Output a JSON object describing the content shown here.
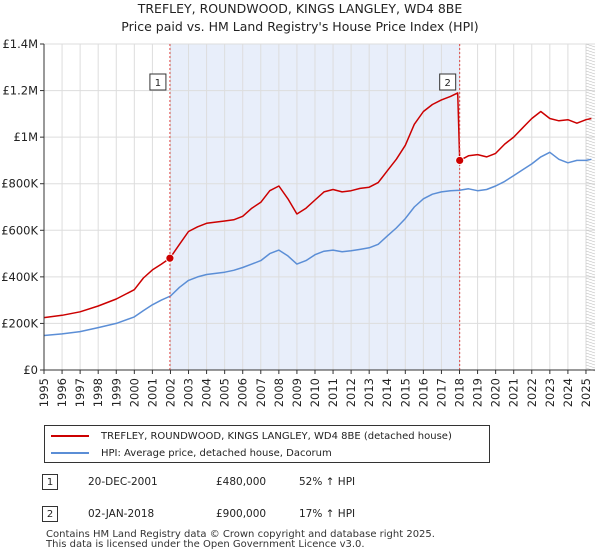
{
  "chart_data": {
    "type": "line",
    "title": "TREFLEY, ROUNDWOOD, KINGS LANGLEY, WD4 8BE",
    "subtitle": "Price paid vs. HM Land Registry's House Price Index (HPI)",
    "xlabel": "",
    "ylabel": "",
    "xlim": [
      1995,
      2025.5
    ],
    "ylim": [
      0,
      1400000
    ],
    "x_ticks": [
      "1995",
      "1996",
      "1997",
      "1998",
      "1999",
      "2000",
      "2001",
      "2002",
      "2003",
      "2004",
      "2005",
      "2006",
      "2007",
      "2008",
      "2009",
      "2010",
      "2011",
      "2012",
      "2013",
      "2014",
      "2015",
      "2016",
      "2017",
      "2018",
      "2019",
      "2020",
      "2021",
      "2022",
      "2023",
      "2024",
      "2025"
    ],
    "y_ticks": [
      {
        "value": 0,
        "label": "£0"
      },
      {
        "value": 200000,
        "label": "£200K"
      },
      {
        "value": 400000,
        "label": "£400K"
      },
      {
        "value": 600000,
        "label": "£600K"
      },
      {
        "value": 800000,
        "label": "£800K"
      },
      {
        "value": 1000000,
        "label": "£1M"
      },
      {
        "value": 1200000,
        "label": "£1.2M"
      },
      {
        "value": 1400000,
        "label": "£1.4M"
      }
    ],
    "grid": true,
    "shaded_region": [
      2001.97,
      2018.01
    ],
    "series": [
      {
        "name": "TREFLEY, ROUNDWOOD, KINGS LANGLEY, WD4 8BE (detached house)",
        "color": "#cc0000",
        "x": [
          1995,
          1996,
          1997,
          1998,
          1999,
          2000,
          2000.5,
          2001,
          2001.5,
          2001.97,
          2002.5,
          2003,
          2003.5,
          2004,
          2004.5,
          2005,
          2005.5,
          2006,
          2006.5,
          2007,
          2007.5,
          2008,
          2008.5,
          2009,
          2009.5,
          2010,
          2010.5,
          2011,
          2011.5,
          2012,
          2012.5,
          2013,
          2013.5,
          2014,
          2014.5,
          2015,
          2015.5,
          2016,
          2016.5,
          2017,
          2017.5,
          2017.9,
          2018.01,
          2018.5,
          2019,
          2019.5,
          2020,
          2020.5,
          2021,
          2021.5,
          2022,
          2022.5,
          2023,
          2023.5,
          2024,
          2024.5,
          2025,
          2025.3
        ],
        "y": [
          225000,
          235000,
          250000,
          275000,
          305000,
          345000,
          395000,
          430000,
          455000,
          480000,
          540000,
          595000,
          615000,
          630000,
          635000,
          640000,
          645000,
          660000,
          695000,
          720000,
          770000,
          790000,
          735000,
          670000,
          695000,
          730000,
          765000,
          775000,
          765000,
          770000,
          780000,
          785000,
          805000,
          855000,
          905000,
          965000,
          1055000,
          1110000,
          1140000,
          1160000,
          1175000,
          1190000,
          900000,
          920000,
          925000,
          915000,
          930000,
          970000,
          1000000,
          1040000,
          1080000,
          1110000,
          1080000,
          1070000,
          1075000,
          1060000,
          1075000,
          1080000
        ]
      },
      {
        "name": "HPI: Average price, detached house, Dacorum",
        "color": "#5b8ed6",
        "x": [
          1995,
          1996,
          1997,
          1998,
          1999,
          2000,
          2000.5,
          2001,
          2001.5,
          2002,
          2002.5,
          2003,
          2003.5,
          2004,
          2004.5,
          2005,
          2005.5,
          2006,
          2006.5,
          2007,
          2007.5,
          2008,
          2008.5,
          2009,
          2009.5,
          2010,
          2010.5,
          2011,
          2011.5,
          2012,
          2012.5,
          2013,
          2013.5,
          2014,
          2014.5,
          2015,
          2015.5,
          2016,
          2016.5,
          2017,
          2017.5,
          2018,
          2018.5,
          2019,
          2019.5,
          2020,
          2020.5,
          2021,
          2021.5,
          2022,
          2022.5,
          2023,
          2023.5,
          2024,
          2024.5,
          2025,
          2025.3
        ],
        "y": [
          148000,
          155000,
          165000,
          182000,
          200000,
          228000,
          255000,
          280000,
          300000,
          318000,
          355000,
          385000,
          400000,
          410000,
          415000,
          420000,
          428000,
          440000,
          455000,
          470000,
          500000,
          515000,
          490000,
          455000,
          470000,
          495000,
          510000,
          515000,
          508000,
          512000,
          518000,
          525000,
          540000,
          575000,
          610000,
          650000,
          700000,
          735000,
          755000,
          765000,
          770000,
          772000,
          778000,
          770000,
          775000,
          790000,
          810000,
          835000,
          860000,
          885000,
          915000,
          935000,
          905000,
          890000,
          900000,
          900000,
          905000
        ]
      }
    ],
    "annotations": [
      {
        "label": "1",
        "x": 2001.97,
        "y": 480000
      },
      {
        "label": "2",
        "x": 2018.01,
        "y": 900000
      }
    ]
  },
  "legend": [
    {
      "label": "TREFLEY, ROUNDWOOD, KINGS LANGLEY, WD4 8BE (detached house)",
      "color": "#cc0000"
    },
    {
      "label": "HPI: Average price, detached house, Dacorum",
      "color": "#5b8ed6"
    }
  ],
  "transactions": [
    {
      "num": "1",
      "date": "20-DEC-2001",
      "price": "£480,000",
      "hpi": "52% ↑ HPI"
    },
    {
      "num": "2",
      "date": "02-JAN-2018",
      "price": "£900,000",
      "hpi": "17% ↑ HPI"
    }
  ],
  "footer": {
    "line1": "Contains HM Land Registry data © Crown copyright and database right 2025.",
    "line2": "This data is licensed under the Open Government Licence v3.0."
  }
}
